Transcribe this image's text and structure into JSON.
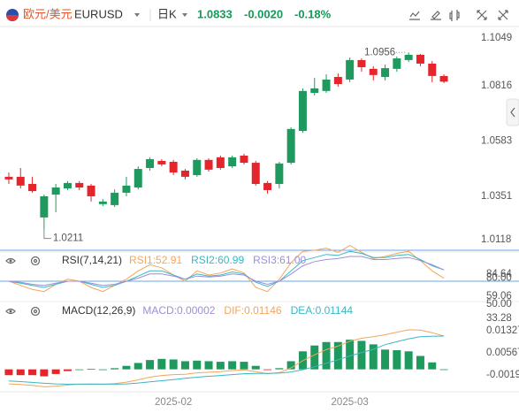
{
  "header": {
    "name": "欧元/美元",
    "symbol": "EURUSD",
    "period": "日K",
    "price": 1.0833,
    "change": "-0.0020",
    "change_pct": "-0.18%"
  },
  "chart_data": [
    {
      "type": "candlestick",
      "categories": [
        null,
        null,
        null,
        null,
        null,
        null,
        null,
        null,
        null,
        null,
        null,
        null,
        null,
        null,
        "2025-02",
        null,
        null,
        null,
        null,
        null,
        null,
        null,
        null,
        null,
        null,
        null,
        null,
        null,
        null,
        "2025-03",
        null,
        null,
        null,
        null,
        null,
        null,
        null,
        null
      ],
      "open": [
        1.0433,
        1.0433,
        1.0403,
        1.0262,
        1.0358,
        1.0384,
        1.0407,
        1.0396,
        1.0318,
        1.0314,
        1.0366,
        1.0388,
        1.047,
        1.05,
        1.0496,
        1.0459,
        1.044,
        1.0504,
        1.0515,
        1.0477,
        1.0522,
        1.0492,
        1.0407,
        1.0403,
        1.0492,
        1.0626,
        1.0786,
        1.0794,
        1.0853,
        1.0842,
        1.0924,
        1.0887,
        1.0853,
        1.0887,
        1.0924,
        1.0946,
        1.0909,
        1.0857
      ],
      "high": [
        1.0451,
        1.047,
        1.0433,
        1.0358,
        1.0403,
        1.0415,
        1.0415,
        1.0403,
        1.034,
        1.038,
        1.0433,
        1.0477,
        1.0515,
        1.0507,
        1.0504,
        1.0466,
        1.0511,
        1.0511,
        1.0522,
        1.0522,
        1.053,
        1.05,
        1.0415,
        1.0496,
        1.0641,
        1.0805,
        1.0849,
        1.0864,
        1.0868,
        1.0935,
        1.0931,
        1.0898,
        1.0905,
        1.0939,
        1.0956,
        1.095,
        1.092,
        1.0864
      ],
      "low": [
        1.0403,
        1.0384,
        1.0366,
        1.0211,
        1.0284,
        1.0377,
        1.0377,
        1.0329,
        1.031,
        1.0306,
        1.0351,
        1.038,
        1.0459,
        1.0477,
        1.044,
        1.0422,
        1.0433,
        1.0455,
        1.0463,
        1.047,
        1.0485,
        1.0396,
        1.0362,
        1.0384,
        1.0485,
        1.0618,
        1.0775,
        1.0786,
        1.0812,
        1.0831,
        1.0875,
        1.0838,
        1.0838,
        1.0875,
        1.0916,
        1.0898,
        1.0831,
        1.0827
      ],
      "close": [
        1.0422,
        1.0396,
        1.0373,
        1.0351,
        1.0388,
        1.0407,
        1.0388,
        1.0351,
        1.0329,
        1.0366,
        1.0396,
        1.0466,
        1.0507,
        1.0485,
        1.0451,
        1.0433,
        1.0504,
        1.0463,
        1.047,
        1.0515,
        1.0492,
        1.0403,
        1.0377,
        1.0489,
        1.0634,
        1.0794,
        1.0805,
        1.0842,
        1.0823,
        1.0924,
        1.0894,
        1.0861,
        1.089,
        1.0931,
        1.0946,
        1.0909,
        1.0857,
        1.0833
      ],
      "up_color": "#1f9a5e",
      "down_color": "#e4262c",
      "ylim": [
        1.0118,
        1.1065
      ],
      "yticks": [
        1.1049,
        1.0816,
        1.0583,
        1.0351,
        1.0118
      ],
      "grid": false
    },
    {
      "type": "line",
      "title": "RSI(7,14,21)",
      "series": [
        {
          "name": "RSI1:52.91",
          "color": "#f2a65a",
          "values": [
            50,
            46,
            42,
            40,
            47,
            52,
            50,
            44,
            40,
            46,
            52,
            60,
            66,
            63,
            56,
            50,
            60,
            56,
            58,
            62,
            58,
            44,
            40,
            52,
            68,
            79,
            80,
            82,
            78,
            84.64,
            78,
            72,
            74,
            77,
            79,
            70,
            60,
            52.91
          ]
        },
        {
          "name": "RSI2:60.99",
          "color": "#3bb7c4",
          "values": [
            50,
            48,
            46,
            44,
            47,
            50,
            50,
            47,
            44,
            46,
            50,
            55,
            60,
            60,
            56,
            52,
            57,
            55,
            56,
            59,
            57,
            49,
            45,
            50,
            60,
            70,
            73,
            76,
            75,
            79,
            77,
            73,
            73,
            75,
            76,
            71,
            65,
            60.99
          ]
        },
        {
          "name": "RSI3:61.00",
          "color": "#9d8fd6",
          "values": [
            50,
            49,
            47,
            46,
            48,
            50,
            50,
            48,
            46,
            47,
            50,
            53,
            57,
            57,
            55,
            52,
            55,
            54,
            55,
            57,
            56,
            50,
            47,
            50,
            57,
            65,
            69,
            71,
            72,
            74,
            74,
            71,
            71,
            72,
            73,
            70,
            66,
            61
          ]
        }
      ],
      "ylim": [
        33.28,
        84.64
      ],
      "yticks": [
        84.64,
        {
          "value": 80,
          "label": "80.00",
          "line": true
        },
        59.06,
        {
          "value": 50,
          "label": "50.00",
          "line": true
        },
        33.28
      ],
      "line_color": "#6aa6ea"
    },
    {
      "type": "macd",
      "title": "MACD(12,26,9)",
      "series": [
        {
          "name": "MACD:0.00002",
          "color": "#9d8fd6",
          "values": [
            -0.002,
            -0.002,
            -0.002,
            -0.0024,
            -0.0016,
            -0.0006,
            0.0,
            0.0002,
            0.0,
            0.0004,
            0.0012,
            0.0022,
            0.0032,
            0.0036,
            0.0034,
            0.0028,
            0.003,
            0.0028,
            0.0026,
            0.0028,
            0.0026,
            0.0012,
            -0.0002,
            0.0004,
            0.0028,
            0.0062,
            0.0082,
            0.0094,
            0.0094,
            0.0102,
            0.0098,
            0.0086,
            0.0068,
            0.0066,
            0.0062,
            0.0046,
            0.0024,
            2e-05
          ]
        },
        {
          "name": "DIF:0.01146",
          "color": "#f2a65a",
          "values": [
            -0.005,
            -0.0052,
            -0.0055,
            -0.006,
            -0.0058,
            -0.0054,
            -0.0051,
            -0.005,
            -0.0051,
            -0.0049,
            -0.0044,
            -0.0036,
            -0.0027,
            -0.0021,
            -0.0018,
            -0.0017,
            -0.0012,
            -0.001,
            -0.0008,
            -0.0004,
            -0.0002,
            -0.0008,
            -0.0015,
            -0.0011,
            0.0005,
            0.003,
            0.005,
            0.0068,
            0.008,
            0.0097,
            0.0107,
            0.0112,
            0.0119,
            0.0128,
            0.0136,
            0.0135,
            0.0126,
            0.01146
          ]
        },
        {
          "name": "DEA:0.01144",
          "color": "#3bb7c4",
          "values": [
            -0.004,
            -0.0042,
            -0.0045,
            -0.0048,
            -0.005,
            -0.0051,
            -0.0051,
            -0.0051,
            -0.0051,
            -0.0051,
            -0.005,
            -0.0047,
            -0.0043,
            -0.0039,
            -0.0035,
            -0.0031,
            -0.0027,
            -0.0024,
            -0.0021,
            -0.0018,
            -0.0015,
            -0.0014,
            -0.0014,
            -0.0013,
            -0.0009,
            -0.0001,
            0.0009,
            0.0021,
            0.0033,
            0.0046,
            0.0058,
            0.0069,
            0.0085,
            0.0095,
            0.0105,
            0.0112,
            0.0114,
            0.01144
          ]
        }
      ],
      "up_color": "#1f9a5e",
      "down_color": "#e4262c",
      "ylim": [
        -0.0068,
        0.0221
      ],
      "yticks": [
        0.01327,
        0.00567,
        -0.00192
      ]
    }
  ]
}
